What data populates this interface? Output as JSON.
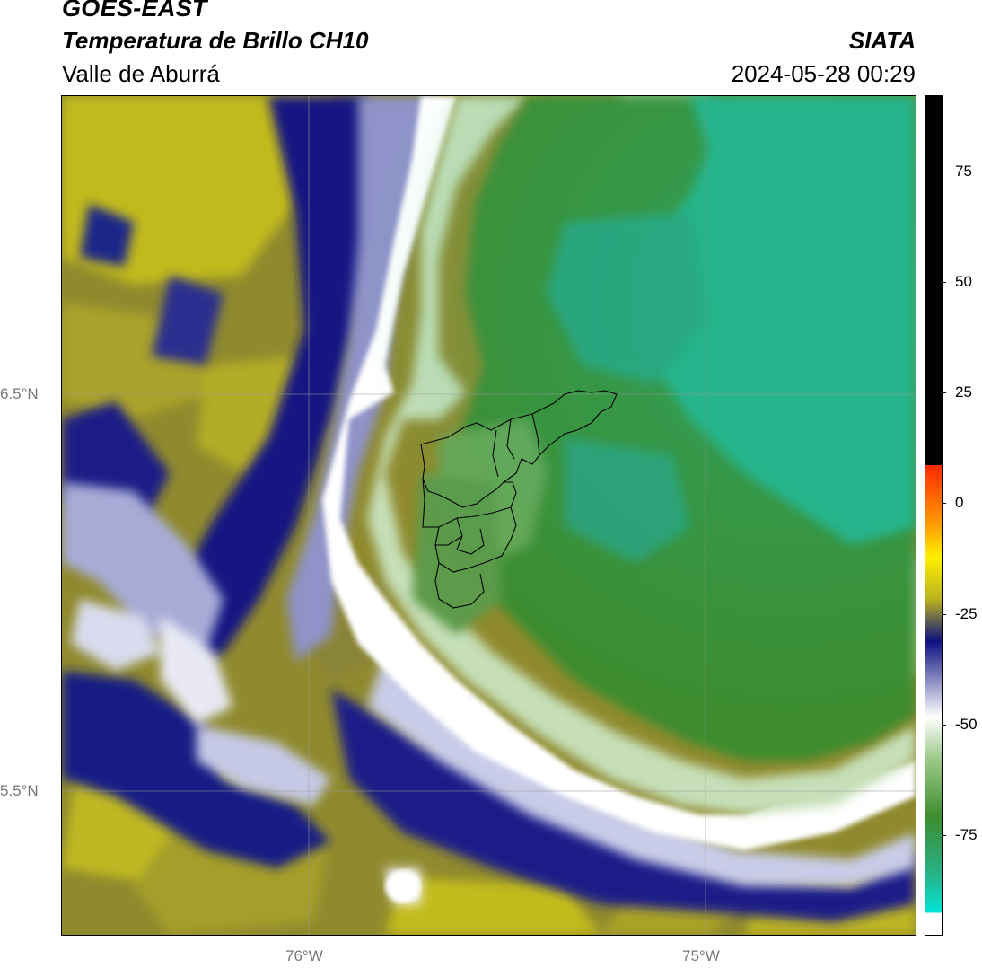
{
  "header": {
    "satellite": "GOES-EAST",
    "product": "Temperatura de Brillo CH10",
    "region": "Valle de Aburrá",
    "organization": "SIATA",
    "datetime": "2024-05-28 00:29"
  },
  "map": {
    "lat_labels": [
      "6.5°N",
      "5.5°N"
    ],
    "lon_labels": [
      "76°W",
      "75°W"
    ],
    "overlay": "Valle de Aburrá municipal boundaries"
  },
  "colorbar": {
    "ticks": [
      "75",
      "50",
      "25",
      "0",
      "-25",
      "-50",
      "-75"
    ],
    "range": [
      -95,
      90
    ],
    "colors": {
      "hot": "#000000",
      "red": "#ff2a00",
      "orange": "#ff9a00",
      "yellow": "#fff000",
      "olive": "#b9b11f",
      "navy": "#0d1080",
      "white": "#ffffff",
      "green_light": "#9dc98a",
      "green": "#3d8d2e",
      "teal": "#25b58c",
      "cyan": "#00e5d8"
    }
  }
}
